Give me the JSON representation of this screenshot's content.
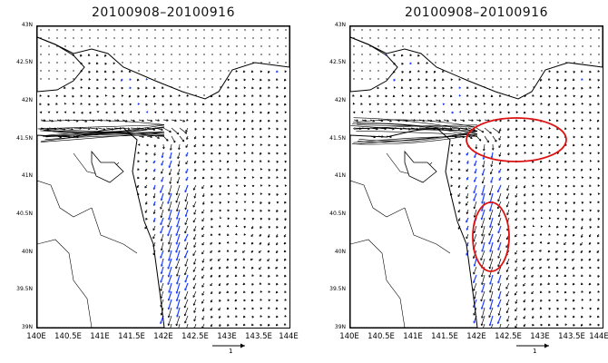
{
  "panels": [
    {
      "title": "20100908–20100916",
      "x_ticks": [
        "140E",
        "140.5E",
        "141E",
        "141.5E",
        "142E",
        "142.5E",
        "143E",
        "143.5E",
        "144E"
      ],
      "y_ticks": [
        "43N",
        "42.5N",
        "42N",
        "41.5N",
        "41N",
        "40.5N",
        "40N",
        "39.5N",
        "39N"
      ],
      "scale_label": "1",
      "highlight_ellipses": 0
    },
    {
      "title": "20100908–20100916",
      "x_ticks": [
        "140E",
        "140.5E",
        "141E",
        "141.5E",
        "142E",
        "142.5E",
        "143E",
        "143.5E",
        "144E"
      ],
      "y_ticks": [
        "43N",
        "42.5N",
        "42N",
        "41.5N",
        "41N",
        "40.5N",
        "40N",
        "39.5N",
        "39N"
      ],
      "scale_label": "1",
      "highlight_ellipses": 2
    }
  ],
  "colors": {
    "vector": "#000000",
    "strong_vector": "#1f3fff",
    "coast": "#000000",
    "highlight": "#dd1111"
  },
  "map": {
    "lon_range": [
      140,
      144
    ],
    "lat_range": [
      39,
      43
    ]
  }
}
